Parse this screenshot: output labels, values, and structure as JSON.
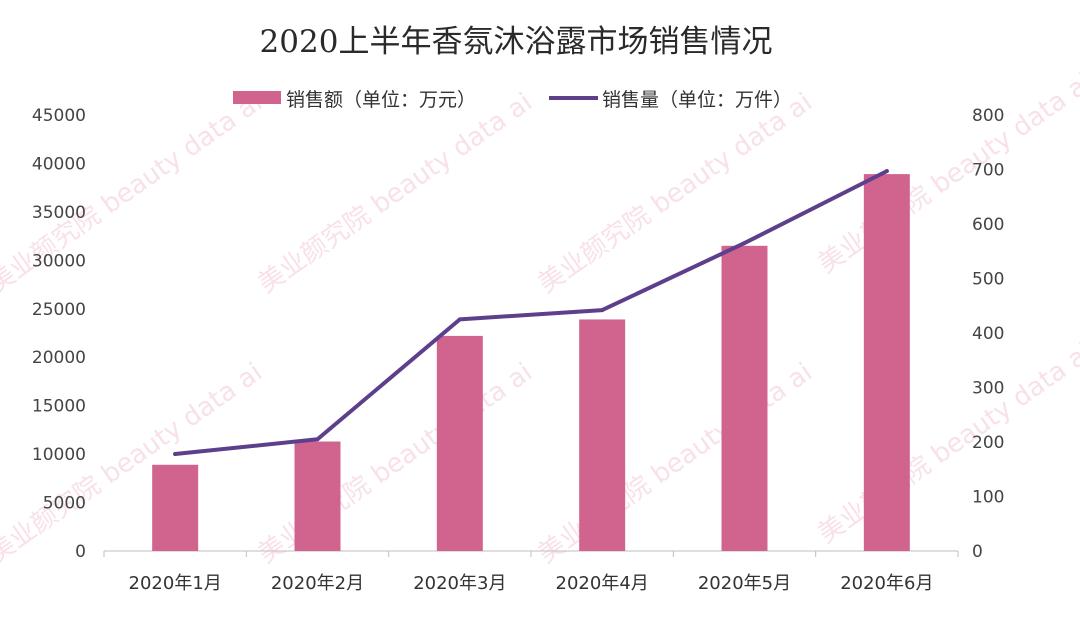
{
  "chart_data": {
    "type": "bar",
    "title": "2020上半年香氛沐浴露市场销售情况",
    "categories": [
      "2020年1月",
      "2020年2月",
      "2020年3月",
      "2020年4月",
      "2020年5月",
      "2020年6月"
    ],
    "series": [
      {
        "name": "销售额（单位：万元）",
        "type": "bar",
        "axis": "left",
        "color": "#d0648f",
        "values": [
          8900,
          11300,
          22200,
          23900,
          31500,
          38900
        ]
      },
      {
        "name": "销售量（单位：万件）",
        "type": "line",
        "axis": "right",
        "color": "#5e3f8c",
        "values": [
          178,
          205,
          425,
          442,
          565,
          697
        ]
      }
    ],
    "y_left": {
      "lim": [
        0,
        45000
      ],
      "ticks": [
        "0",
        "5000",
        "10000",
        "15000",
        "20000",
        "25000",
        "30000",
        "35000",
        "40000",
        "45000"
      ]
    },
    "y_right": {
      "lim": [
        0,
        800
      ],
      "ticks": [
        "0",
        "100",
        "200",
        "300",
        "400",
        "500",
        "600",
        "700",
        "800"
      ]
    },
    "grid": false,
    "legend_position": "top-center",
    "watermark": "美业颜究院 beauty data ai"
  }
}
